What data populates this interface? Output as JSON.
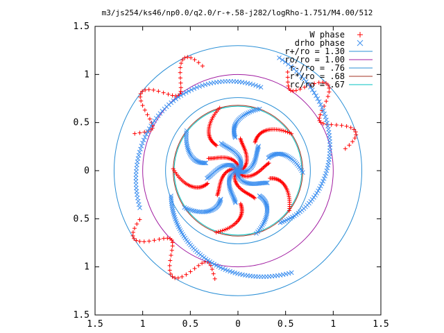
{
  "chart_data": {
    "type": "scatter",
    "title": "m3/js254/ks46/np0.0/q2.0/r-+.58-j282/logRho-1.751/M4.00/512",
    "xlabel": "",
    "ylabel": "",
    "xlim": [
      -1.5,
      1.5
    ],
    "ylim": [
      -1.5,
      1.5
    ],
    "x_tick_values": [
      -1.5,
      -1,
      -0.5,
      0,
      0.5,
      1,
      1.5
    ],
    "x_tick_labels": [
      "1.5",
      "1",
      "0.5",
      "0",
      "0.5",
      "1",
      "1.5"
    ],
    "y_tick_values": [
      1.5,
      1,
      0.5,
      0,
      -0.5,
      -1,
      -1.5
    ],
    "y_tick_labels": [
      "1.5",
      "1",
      "0.5",
      "0",
      "0.5",
      "1",
      "1.5"
    ],
    "grid": false,
    "legend_position": "top-right",
    "scatter_series": [
      {
        "name": "W phase",
        "marker": "+",
        "color": "#ff0000",
        "arms": [
          {
            "phase": 0.0,
            "center": [
              0.0,
              0.0
            ],
            "r_inner": 0.0,
            "r_outer": 0.68
          },
          {
            "phase": 1.2566,
            "center": [
              0.0,
              0.0
            ],
            "r_inner": 0.0,
            "r_outer": 0.68
          },
          {
            "phase": 2.5133,
            "center": [
              0.0,
              0.0
            ],
            "r_inner": 0.0,
            "r_outer": 0.68
          },
          {
            "phase": 3.7699,
            "center": [
              0.0,
              0.0
            ],
            "r_inner": 0.0,
            "r_outer": 0.68
          },
          {
            "phase": 5.0265,
            "center": [
              0.0,
              0.0
            ],
            "r_inner": 0.0,
            "r_outer": 0.68
          }
        ],
        "outer_features": [
          {
            "phase": 0.2,
            "r_inner": 1.0,
            "r_outer": 1.3
          },
          {
            "phase": 1.9,
            "r_inner": 1.0,
            "r_outer": 1.3
          },
          {
            "phase": 3.6,
            "r_inner": 1.0,
            "r_outer": 1.3
          }
        ]
      },
      {
        "name": "drho phase",
        "marker": "x",
        "color": "#3d8fef",
        "arms": [
          {
            "phase": 0.63,
            "center": [
              0.0,
              0.0
            ],
            "r_inner": 0.0,
            "r_outer": 0.68
          },
          {
            "phase": 1.885,
            "center": [
              0.0,
              0.0
            ],
            "r_inner": 0.0,
            "r_outer": 0.68
          },
          {
            "phase": 3.14,
            "center": [
              0.0,
              0.0
            ],
            "r_inner": 0.0,
            "r_outer": 0.68
          },
          {
            "phase": 4.4,
            "center": [
              0.0,
              0.0
            ],
            "r_inner": 0.0,
            "r_outer": 0.68
          },
          {
            "phase": 5.655,
            "center": [
              0.0,
              0.0
            ],
            "r_inner": 0.0,
            "r_outer": 0.68
          }
        ],
        "outer_arcs": [
          {
            "theta_start": 1.3,
            "theta_end": 3.5,
            "r_start": 0.9,
            "r_end": 1.1
          },
          {
            "theta_start": 3.5,
            "theta_end": 5.2,
            "r_start": 0.75,
            "r_end": 1.2
          },
          {
            "theta_start": 5.4,
            "theta_end": 7.5,
            "r_start": 0.7,
            "r_end": 1.25
          }
        ]
      }
    ],
    "circles": [
      {
        "name": "r+/ro = 1.30",
        "radius": 1.3,
        "color": "#2a8fd6"
      },
      {
        "name": "ro/ro = 1.00",
        "radius": 1.0,
        "color": "#a01aa0"
      },
      {
        "name": "r-/ro = .76",
        "radius": 0.76,
        "color": "#2a8fd6"
      },
      {
        "name": "r*/ro = .68",
        "radius": 0.68,
        "color": "#a03020"
      },
      {
        "name": "rc/ro = .67",
        "radius": 0.67,
        "color": "#00c0c0"
      }
    ],
    "legend": [
      {
        "label": "W phase",
        "marker": "+",
        "color": "#ff0000"
      },
      {
        "label": "drho phase",
        "marker": "x",
        "color": "#3d8fef"
      },
      {
        "label": "r+/ro = 1.30",
        "marker": "line",
        "color": "#2a8fd6"
      },
      {
        "label": "ro/ro = 1.00",
        "marker": "line",
        "color": "#a01aa0"
      },
      {
        "label": "r-/ro = .76",
        "marker": "line",
        "color": "#2a8fd6"
      },
      {
        "label": "r*/ro = .68",
        "marker": "line",
        "color": "#a03020"
      },
      {
        "label": "rc/ro = .67",
        "marker": "line",
        "color": "#00c0c0"
      }
    ]
  }
}
